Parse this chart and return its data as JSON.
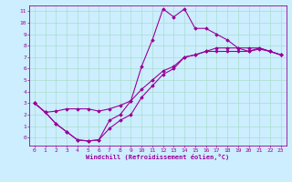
{
  "xlabel": "Windchill (Refroidissement éolien,°C)",
  "ylabel": "",
  "bg_color": "#cceeff",
  "grid_color": "#aaddcc",
  "line_color": "#990099",
  "xlim": [
    -0.5,
    23.5
  ],
  "ylim": [
    -0.7,
    11.5
  ],
  "xticks": [
    0,
    1,
    2,
    3,
    4,
    5,
    6,
    7,
    8,
    9,
    10,
    11,
    12,
    13,
    14,
    15,
    16,
    17,
    18,
    19,
    20,
    21,
    22,
    23
  ],
  "yticks": [
    0,
    1,
    2,
    3,
    4,
    5,
    6,
    7,
    8,
    9,
    10,
    11
  ],
  "line1_x": [
    0,
    1,
    2,
    3,
    4,
    5,
    6,
    7,
    8,
    9,
    10,
    11,
    12,
    13,
    14,
    15,
    16,
    17,
    18,
    19,
    20,
    21,
    22,
    23
  ],
  "line1_y": [
    3.0,
    2.2,
    1.2,
    0.5,
    -0.2,
    -0.3,
    -0.2,
    1.5,
    2.0,
    3.2,
    6.2,
    8.5,
    11.2,
    10.5,
    11.2,
    9.5,
    9.5,
    9.0,
    8.5,
    7.8,
    7.5,
    7.8,
    7.5,
    7.2
  ],
  "line2_x": [
    0,
    1,
    2,
    3,
    4,
    5,
    6,
    7,
    8,
    9,
    10,
    11,
    12,
    13,
    14,
    15,
    16,
    17,
    18,
    19,
    20,
    21,
    22,
    23
  ],
  "line2_y": [
    3.0,
    2.2,
    1.2,
    0.5,
    -0.2,
    -0.3,
    -0.2,
    0.8,
    1.5,
    2.0,
    3.5,
    4.5,
    5.5,
    6.0,
    7.0,
    7.2,
    7.5,
    7.5,
    7.5,
    7.5,
    7.5,
    7.7,
    7.5,
    7.2
  ],
  "line3_x": [
    0,
    1,
    2,
    3,
    4,
    5,
    6,
    7,
    8,
    9,
    10,
    11,
    12,
    13,
    14,
    15,
    16,
    17,
    18,
    19,
    20,
    21,
    22,
    23
  ],
  "line3_y": [
    3.0,
    2.2,
    2.3,
    2.5,
    2.5,
    2.5,
    2.3,
    2.5,
    2.8,
    3.2,
    4.2,
    5.0,
    5.8,
    6.2,
    7.0,
    7.2,
    7.5,
    7.8,
    7.8,
    7.8,
    7.8,
    7.8,
    7.5,
    7.2
  ]
}
